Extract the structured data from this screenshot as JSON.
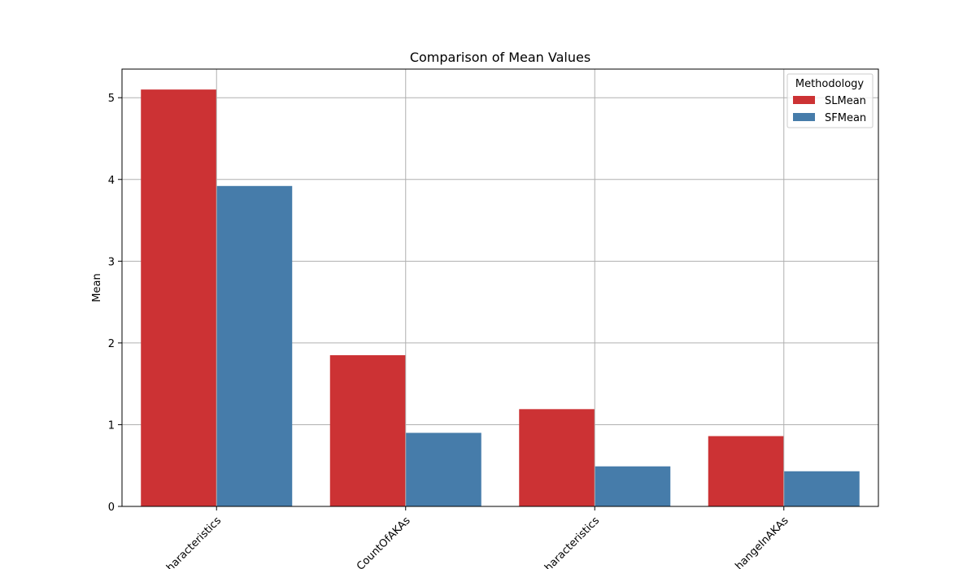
{
  "chart_data": {
    "type": "bar",
    "title": "Comparison of Mean Values",
    "xlabel": "",
    "ylabel": "Mean",
    "categories": [
      "haracteristics",
      "CountOfAKAs",
      "haracteristics",
      "hangeInAKAs"
    ],
    "series": [
      {
        "name": "SLMean",
        "color": "#cc3234",
        "values": [
          5.1,
          1.85,
          1.19,
          0.86
        ]
      },
      {
        "name": "SFMean",
        "color": "#467caa",
        "values": [
          3.92,
          0.9,
          0.49,
          0.43
        ]
      }
    ],
    "ylim": [
      0,
      5.35
    ],
    "yticks": [
      0,
      1,
      2,
      3,
      4,
      5
    ],
    "grid": true,
    "legend": {
      "title": "Methodology",
      "placement": "top-right"
    }
  }
}
